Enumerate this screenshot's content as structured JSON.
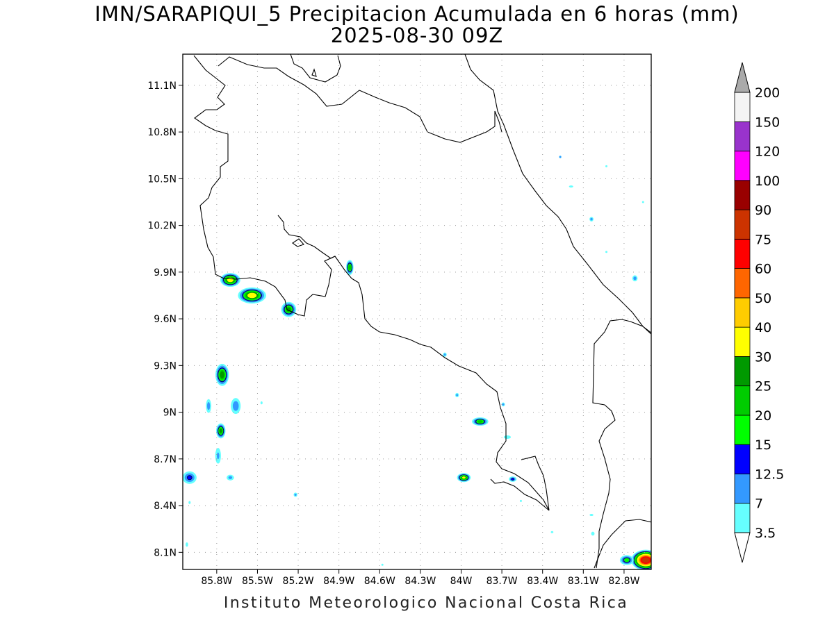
{
  "title": "IMN/SARAPIQUI_5 Precipitacion Acumulada en 6 horas (mm)",
  "subtitle": "2025-08-30 09Z",
  "footer": "Instituto Meteorologico Nacional Costa Rica",
  "map": {
    "lon_range": [
      -86.05,
      -82.6
    ],
    "lat_range": [
      7.99,
      11.3
    ],
    "lon_ticks": [
      {
        "value": -85.8,
        "label": "85.8W"
      },
      {
        "value": -85.5,
        "label": "85.5W"
      },
      {
        "value": -85.2,
        "label": "85.2W"
      },
      {
        "value": -84.9,
        "label": "84.9W"
      },
      {
        "value": -84.6,
        "label": "84.6W"
      },
      {
        "value": -84.3,
        "label": "84.3W"
      },
      {
        "value": -84.0,
        "label": "84W"
      },
      {
        "value": -83.7,
        "label": "83.7W"
      },
      {
        "value": -83.4,
        "label": "83.4W"
      },
      {
        "value": -83.1,
        "label": "83.1W"
      },
      {
        "value": -82.8,
        "label": "82.8W"
      }
    ],
    "lat_ticks": [
      {
        "value": 8.1,
        "label": "8.1N"
      },
      {
        "value": 8.4,
        "label": "8.4N"
      },
      {
        "value": 8.7,
        "label": "8.7N"
      },
      {
        "value": 9.0,
        "label": "9N"
      },
      {
        "value": 9.3,
        "label": "9.3N"
      },
      {
        "value": 9.6,
        "label": "9.6N"
      },
      {
        "value": 9.9,
        "label": "9.9N"
      },
      {
        "value": 10.2,
        "label": "10.2N"
      },
      {
        "value": 10.5,
        "label": "10.5N"
      },
      {
        "value": 10.8,
        "label": "10.8N"
      },
      {
        "value": 11.1,
        "label": "11.1N"
      }
    ],
    "grid": true
  },
  "colorbar": {
    "levels": [
      "3.5",
      "7",
      "12.5",
      "15",
      "20",
      "25",
      "30",
      "40",
      "50",
      "60",
      "75",
      "90",
      "100",
      "120",
      "150",
      "200"
    ],
    "colors": [
      "#66ffff",
      "#3399ff",
      "#0000ff",
      "#00ff00",
      "#00cc00",
      "#009900",
      "#ffff00",
      "#ffcc00",
      "#ff6600",
      "#ff0000",
      "#cc3300",
      "#990000",
      "#ff00ff",
      "#9933cc",
      "#f4f4f4"
    ],
    "under_color": "#ffffff",
    "over_color": "#aaaaaa"
  },
  "precip_cells": [
    {
      "lon": -85.7,
      "lat": 9.85,
      "rx": 0.1,
      "ry": 0.06,
      "peak": 35
    },
    {
      "lon": -85.54,
      "lat": 9.75,
      "rx": 0.14,
      "ry": 0.07,
      "peak": 35
    },
    {
      "lon": -85.27,
      "lat": 9.66,
      "rx": 0.08,
      "ry": 0.07,
      "peak": 25
    },
    {
      "lon": -85.76,
      "lat": 9.24,
      "rx": 0.07,
      "ry": 0.1,
      "peak": 28
    },
    {
      "lon": -85.77,
      "lat": 8.88,
      "rx": 0.05,
      "ry": 0.07,
      "peak": 25
    },
    {
      "lon": -85.66,
      "lat": 9.04,
      "rx": 0.07,
      "ry": 0.1,
      "peak": 10
    },
    {
      "lon": -85.86,
      "lat": 9.04,
      "rx": 0.04,
      "ry": 0.09,
      "peak": 9
    },
    {
      "lon": -85.79,
      "lat": 8.72,
      "rx": 0.05,
      "ry": 0.12,
      "peak": 7
    },
    {
      "lon": -86.0,
      "lat": 8.58,
      "rx": 0.09,
      "ry": 0.07,
      "peak": 13
    },
    {
      "lon": -85.7,
      "lat": 8.58,
      "rx": 0.06,
      "ry": 0.04,
      "peak": 8
    },
    {
      "lon": -85.22,
      "lat": 8.47,
      "rx": 0.03,
      "ry": 0.03,
      "peak": 8
    },
    {
      "lon": -86.0,
      "lat": 8.42,
      "rx": 0.03,
      "ry": 0.04,
      "peak": 4
    },
    {
      "lon": -86.02,
      "lat": 8.15,
      "rx": 0.04,
      "ry": 0.06,
      "peak": 4
    },
    {
      "lon": -85.47,
      "lat": 9.06,
      "rx": 0.03,
      "ry": 0.04,
      "peak": 4
    },
    {
      "lon": -84.82,
      "lat": 9.93,
      "rx": 0.04,
      "ry": 0.07,
      "peak": 24
    },
    {
      "lon": -84.12,
      "lat": 9.37,
      "rx": 0.03,
      "ry": 0.03,
      "peak": 8
    },
    {
      "lon": -84.03,
      "lat": 9.11,
      "rx": 0.03,
      "ry": 0.03,
      "peak": 8
    },
    {
      "lon": -83.86,
      "lat": 8.94,
      "rx": 0.09,
      "ry": 0.04,
      "peak": 22
    },
    {
      "lon": -83.66,
      "lat": 8.84,
      "rx": 0.07,
      "ry": 0.03,
      "peak": 6
    },
    {
      "lon": -83.69,
      "lat": 9.05,
      "rx": 0.03,
      "ry": 0.03,
      "peak": 7
    },
    {
      "lon": -83.98,
      "lat": 8.58,
      "rx": 0.07,
      "ry": 0.04,
      "peak": 30
    },
    {
      "lon": -83.62,
      "lat": 8.57,
      "rx": 0.05,
      "ry": 0.03,
      "peak": 13
    },
    {
      "lon": -83.56,
      "lat": 8.43,
      "rx": 0.03,
      "ry": 0.02,
      "peak": 4
    },
    {
      "lon": -83.33,
      "lat": 8.23,
      "rx": 0.03,
      "ry": 0.02,
      "peak": 5
    },
    {
      "lon": -83.04,
      "lat": 8.34,
      "rx": 0.06,
      "ry": 0.02,
      "peak": 4
    },
    {
      "lon": -83.03,
      "lat": 8.22,
      "rx": 0.04,
      "ry": 0.04,
      "peak": 5
    },
    {
      "lon": -84.58,
      "lat": 8.02,
      "rx": 0.03,
      "ry": 0.02,
      "peak": 4
    },
    {
      "lon": -83.27,
      "lat": 10.64,
      "rx": 0.02,
      "ry": 0.02,
      "peak": 7
    },
    {
      "lon": -83.19,
      "lat": 10.45,
      "rx": 0.05,
      "ry": 0.02,
      "peak": 5
    },
    {
      "lon": -83.04,
      "lat": 10.24,
      "rx": 0.03,
      "ry": 0.03,
      "peak": 9
    },
    {
      "lon": -82.93,
      "lat": 10.03,
      "rx": 0.02,
      "ry": 0.02,
      "peak": 4
    },
    {
      "lon": -82.72,
      "lat": 9.86,
      "rx": 0.04,
      "ry": 0.04,
      "peak": 9
    },
    {
      "lon": -82.66,
      "lat": 10.35,
      "rx": 0.02,
      "ry": 0.02,
      "peak": 5
    },
    {
      "lon": -82.93,
      "lat": 10.58,
      "rx": 0.01,
      "ry": 0.01,
      "peak": 4
    },
    {
      "lon": -82.64,
      "lat": 8.05,
      "rx": 0.13,
      "ry": 0.08,
      "peak": 82
    },
    {
      "lon": -82.78,
      "lat": 8.05,
      "rx": 0.08,
      "ry": 0.05,
      "peak": 18
    }
  ]
}
